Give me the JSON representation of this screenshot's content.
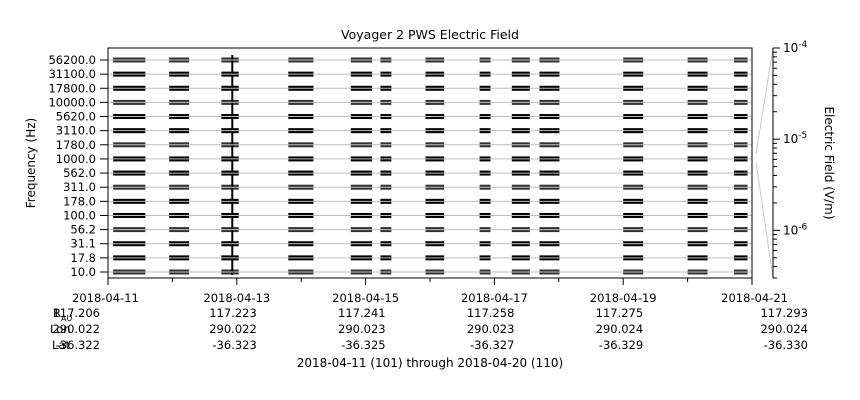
{
  "chart_data": {
    "type": "heatmap",
    "title": "Voyager 2 PWS Electric Field",
    "ylabel": "Frequency (Hz)",
    "y_scale": "channel",
    "y_ticks": [
      "10.0",
      "17.8",
      "31.1",
      "56.2",
      "100.0",
      "178.0",
      "311.0",
      "562.0",
      "1000.0",
      "1780.0",
      "3110.0",
      "5620.0",
      "10000.0",
      "17800.0",
      "31100.0",
      "56200.0"
    ],
    "x_ticks": [
      "2018-04-11",
      "2018-04-13",
      "2018-04-15",
      "2018-04-17",
      "2018-04-19",
      "2018-04-21"
    ],
    "xlim": [
      "2018-04-11",
      "2018-04-21"
    ],
    "grid": true,
    "colorbar": {
      "label": "Electric Field (V/m)",
      "scale": "log",
      "range": [
        3e-07,
        0.0001
      ],
      "tick_labels": [
        {
          "base": "10",
          "exp": "-4",
          "value": 0.0001
        },
        {
          "base": "10",
          "exp": "-5",
          "value": 1e-05
        },
        {
          "base": "10",
          "exp": "-6",
          "value": 1e-06
        }
      ]
    },
    "data_segments_days": [
      [
        0.08,
        0.58
      ],
      [
        0.95,
        1.26
      ],
      [
        1.76,
        2.03
      ],
      [
        2.8,
        3.19
      ],
      [
        3.77,
        4.1
      ],
      [
        4.23,
        4.4
      ],
      [
        4.93,
        5.22
      ],
      [
        5.77,
        5.94
      ],
      [
        6.27,
        6.55
      ],
      [
        6.7,
        7.01
      ],
      [
        8.0,
        8.31
      ],
      [
        9.0,
        9.31
      ],
      [
        9.72,
        9.93
      ]
    ],
    "channels_count": 16,
    "ephemeris": {
      "row_labels": {
        "r_main": "R",
        "r_sub": "AU",
        "lon": "Lon",
        "lat": "Lat"
      },
      "columns": [
        {
          "r": "117.206",
          "lon": "290.022",
          "lat": "-36.322"
        },
        {
          "r": "117.223",
          "lon": "290.022",
          "lat": "-36.323"
        },
        {
          "r": "117.241",
          "lon": "290.023",
          "lat": "-36.325"
        },
        {
          "r": "117.258",
          "lon": "290.023",
          "lat": "-36.327"
        },
        {
          "r": "117.275",
          "lon": "290.024",
          "lat": "-36.329"
        },
        {
          "r": "117.293",
          "lon": "290.024",
          "lat": "-36.330"
        }
      ]
    },
    "footer": "2018-04-11 (101) through 2018-04-20 (110)"
  }
}
